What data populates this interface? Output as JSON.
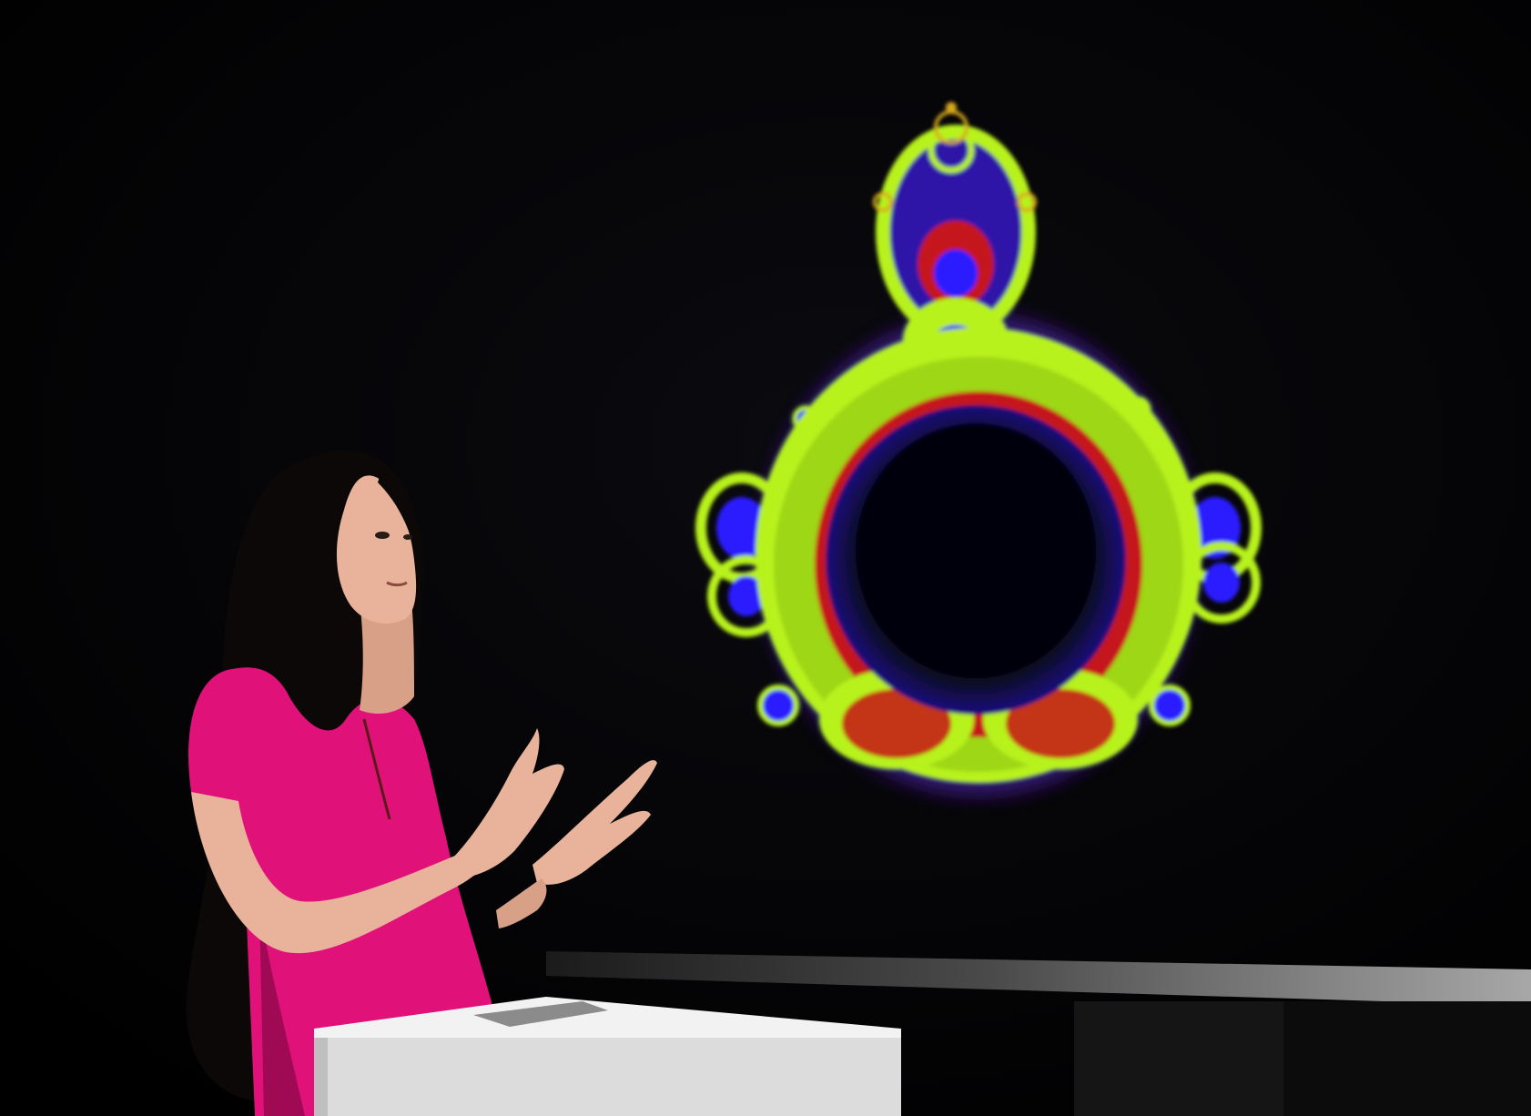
{
  "scene": {
    "background": "#030303",
    "fractal_colors": {
      "outer_glow": "#6b2bd6",
      "ring": "#b8f21a",
      "ring_dark": "#7fae0c",
      "inner_red": "#c4141a",
      "inner_blue": "#3b2bff",
      "core": "#05040a"
    },
    "person": {
      "shirt": "#e0127a",
      "shirt_shadow": "#a00a55",
      "skin": "#e8b39a",
      "skin_shadow": "#b9806a",
      "hair": "#0b0807"
    },
    "pedestal": {
      "top": "#f2f2f2",
      "front": "#dcdcdc",
      "side": "#9a9a9a"
    },
    "rail": {
      "color": "#8a8a8a"
    }
  }
}
